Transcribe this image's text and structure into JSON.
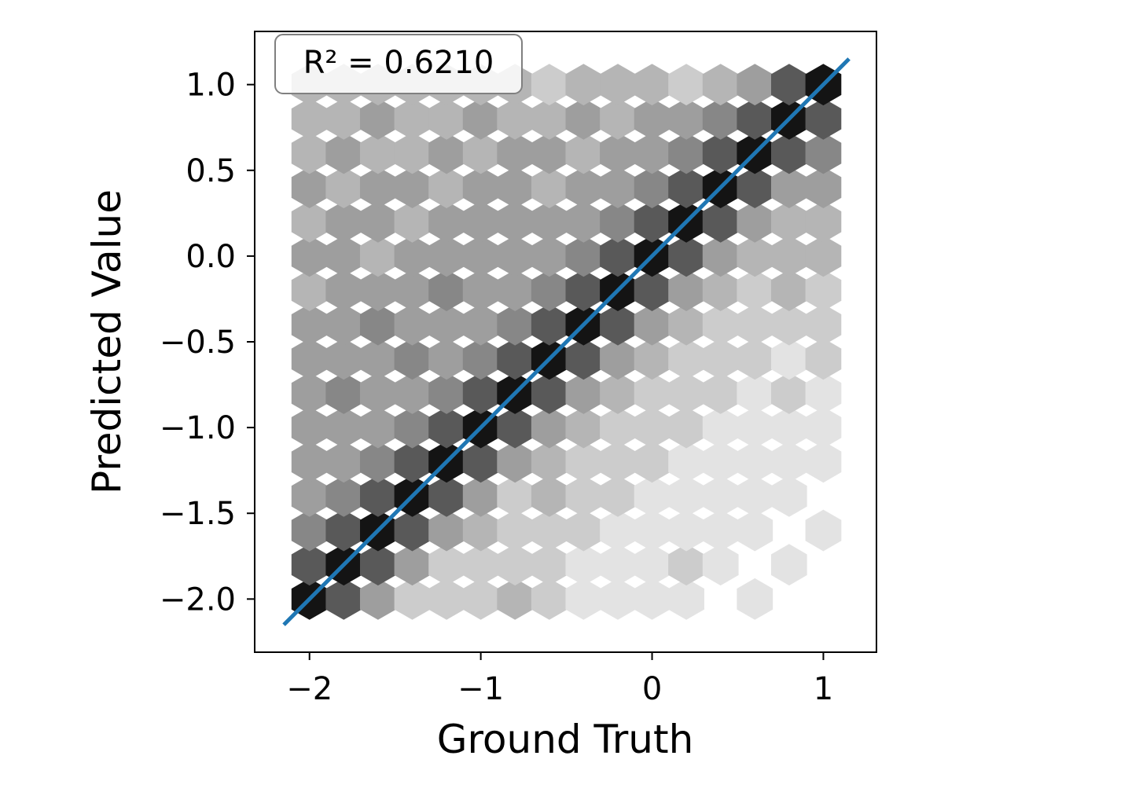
{
  "chart_data": {
    "type": "hexbin",
    "xlabel": "Ground Truth",
    "ylabel": "Predicted Value",
    "annotation": "R² = 0.6210",
    "xlim": [
      -2.32,
      1.31
    ],
    "ylim": [
      -2.31,
      1.31
    ],
    "xticks": [
      {
        "value": -2,
        "label": "−2"
      },
      {
        "value": -1,
        "label": "−1"
      },
      0,
      1
    ],
    "yticks": [
      {
        "value": -2.0,
        "label": "−2.0"
      },
      {
        "value": -1.5,
        "label": "−1.5"
      },
      {
        "value": -1.0,
        "label": "−1.0"
      },
      {
        "value": -0.5,
        "label": "−0.5"
      },
      {
        "value": 0.0,
        "label": "0.0"
      },
      {
        "value": 0.5,
        "label": "0.5"
      },
      {
        "value": 1.0,
        "label": "1.0"
      }
    ],
    "cmap": "Greys",
    "hexbin": {
      "x": [
        -2.0,
        -1.8,
        -1.6,
        -1.4,
        -1.2,
        -1.0,
        -0.8,
        -0.6,
        -0.4,
        -0.2,
        0.0,
        0.2,
        0.4,
        0.6,
        0.8,
        1.0
      ],
      "y": [
        -2.0,
        -1.8,
        -1.6,
        -1.4,
        -1.2,
        -1.0,
        -0.8,
        -0.6,
        -0.4,
        -0.2,
        0.0,
        0.2,
        0.4,
        0.6,
        0.8,
        1.0
      ],
      "counts": [
        [
          10,
          7,
          4,
          2,
          2,
          2,
          3,
          2,
          1,
          1,
          1,
          1,
          0,
          1,
          0,
          0
        ],
        [
          7,
          10,
          7,
          4,
          2,
          2,
          2,
          2,
          1,
          1,
          1,
          2,
          1,
          0,
          1,
          0
        ],
        [
          5,
          7,
          10,
          7,
          4,
          3,
          2,
          2,
          2,
          1,
          1,
          1,
          1,
          1,
          0,
          1
        ],
        [
          4,
          5,
          7,
          10,
          7,
          4,
          2,
          3,
          2,
          2,
          1,
          1,
          1,
          1,
          1,
          0
        ],
        [
          4,
          4,
          5,
          7,
          10,
          7,
          4,
          3,
          2,
          2,
          2,
          1,
          1,
          1,
          1,
          1
        ],
        [
          4,
          4,
          4,
          5,
          7,
          10,
          7,
          4,
          3,
          2,
          2,
          2,
          1,
          1,
          1,
          1
        ],
        [
          4,
          5,
          4,
          4,
          5,
          7,
          10,
          7,
          4,
          3,
          2,
          2,
          2,
          1,
          2,
          1
        ],
        [
          4,
          4,
          4,
          5,
          4,
          5,
          7,
          10,
          7,
          4,
          3,
          2,
          2,
          2,
          1,
          2
        ],
        [
          4,
          4,
          5,
          4,
          4,
          4,
          5,
          7,
          10,
          7,
          4,
          3,
          2,
          2,
          2,
          2
        ],
        [
          3,
          4,
          4,
          4,
          5,
          4,
          4,
          5,
          7,
          10,
          7,
          4,
          3,
          2,
          3,
          2
        ],
        [
          4,
          4,
          3,
          4,
          4,
          4,
          4,
          4,
          5,
          7,
          10,
          7,
          4,
          3,
          3,
          3
        ],
        [
          3,
          4,
          4,
          3,
          4,
          4,
          4,
          4,
          4,
          5,
          7,
          10,
          7,
          4,
          3,
          3
        ],
        [
          4,
          3,
          4,
          4,
          3,
          4,
          4,
          3,
          4,
          4,
          5,
          7,
          10,
          7,
          4,
          4
        ],
        [
          3,
          4,
          3,
          3,
          4,
          3,
          4,
          4,
          3,
          4,
          4,
          5,
          7,
          10,
          7,
          5
        ],
        [
          3,
          3,
          4,
          3,
          3,
          4,
          3,
          3,
          4,
          3,
          4,
          4,
          5,
          7,
          10,
          7
        ],
        [
          3,
          3,
          3,
          3,
          3,
          3,
          3,
          2,
          3,
          3,
          3,
          2,
          3,
          4,
          7,
          10
        ]
      ]
    },
    "series": [
      {
        "color": "#1f77b4",
        "x": [
          -2.15,
          1.15
        ],
        "values": [
          -2.15,
          1.15
        ]
      }
    ]
  }
}
